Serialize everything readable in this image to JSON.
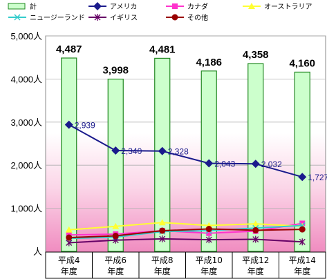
{
  "chart_data": {
    "type": "bar",
    "categories": [
      "平成4\n年度",
      "平成6\n年度",
      "平成8\n年度",
      "平成10\n年度",
      "平成12\n年度",
      "平成14\n年度"
    ],
    "y_ticks": [
      "5,000人",
      "4,000人",
      "3,000人",
      "2,000人",
      "1,000人",
      "人"
    ],
    "ylim": [
      0,
      5000
    ],
    "grid": true,
    "legend_position": "top",
    "background": "pink gradient (white at top to pink at bottom)",
    "series": [
      {
        "name": "計",
        "kind": "bar",
        "values": [
          4487,
          3998,
          4481,
          4186,
          4358,
          4160
        ],
        "labels": [
          "4,487",
          "3,998",
          "4,481",
          "4,186",
          "4,358",
          "4,160"
        ],
        "color": "#ccffcc",
        "stroke": "#228822"
      },
      {
        "name": "アメリカ",
        "kind": "line",
        "values": [
          2939,
          2340,
          2328,
          2043,
          2032,
          1727
        ],
        "labels": [
          "2,939",
          "2,340",
          "2,328",
          "2,043",
          "2,032",
          "1,727"
        ],
        "color": "#1a1a8c",
        "marker": "diamond"
      },
      {
        "name": "カナダ",
        "kind": "line",
        "values": [
          380,
          400,
          480,
          420,
          470,
          650
        ],
        "color": "#ff33cc",
        "marker": "square"
      },
      {
        "name": "オーストラリア",
        "kind": "line",
        "values": [
          500,
          580,
          670,
          600,
          640,
          580
        ],
        "color": "#ffff33",
        "marker": "triangle"
      },
      {
        "name": "ニュージーランド",
        "kind": "line",
        "values": [
          300,
          330,
          460,
          480,
          540,
          600
        ],
        "color": "#33cccc",
        "marker": "x"
      },
      {
        "name": "イギリス",
        "kind": "line",
        "values": [
          200,
          260,
          290,
          270,
          280,
          220
        ],
        "color": "#660066",
        "marker": "asterisk"
      },
      {
        "name": "その他",
        "kind": "line",
        "values": [
          320,
          360,
          480,
          520,
          490,
          510
        ],
        "color": "#990000",
        "marker": "circle"
      }
    ]
  }
}
